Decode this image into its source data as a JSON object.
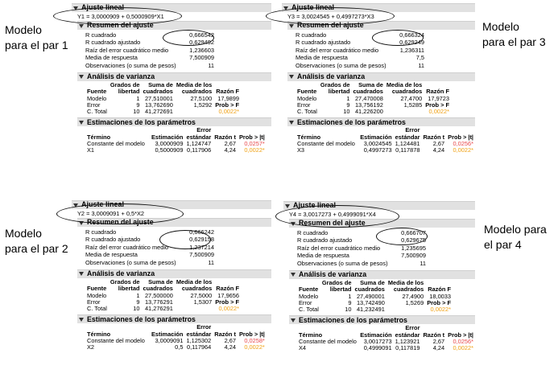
{
  "labels": {
    "p1": "Modelo\npara el par 1",
    "p2": "Modelo\npara el par 2",
    "p3": "Modelo\npara el par 3",
    "p4": "Modelo para\nel par 4"
  },
  "common": {
    "fit_title": "Ajuste lineal",
    "summary_title": "Resumen del ajuste",
    "rsq": "R cuadrado",
    "rsq_adj": "R cuadrado ajustado",
    "rmse": "Raíz del error cuadrático medio",
    "mean": "Media de respuesta",
    "obs": "Observaciones (o suma de pesos)",
    "anova_title": "Análisis de varianza",
    "h_source": "Fuente",
    "h_df1": "Grados de",
    "h_df2": "libertad",
    "h_ss1": "Suma de",
    "h_ss2": "cuadrados",
    "h_ms1": "Media de los",
    "h_ms2": "cuadrados",
    "h_f": "Razón F",
    "h_probf": "Prob > F",
    "src_model": "Modelo",
    "src_error": "Error",
    "src_total": "C. Total",
    "params_title": "Estimaciones de los parámetros",
    "h_term": "Término",
    "h_est": "Estimación",
    "h_err1": "Error",
    "h_err2": "estándar",
    "h_t": "Razón t",
    "h_pt": "Prob > |t|",
    "term_const": "Constante del modelo"
  },
  "panels": {
    "p1": {
      "equation": "Y1 = 3,0000909 + 0,5000909*X1",
      "summary": {
        "rsq": "0,666542",
        "rsq_adj": "0,629492",
        "rmse": "1,236603",
        "mean": "7,500909",
        "obs": "11"
      },
      "anova": {
        "model": {
          "df": "1",
          "ss": "27,510001",
          "ms": "27,5100",
          "f": "17,9899"
        },
        "error": {
          "df": "9",
          "ss": "13,762690",
          "ms": "1,5292"
        },
        "total": {
          "df": "10",
          "ss": "41,272691",
          "pf": "0,0022*"
        }
      },
      "params": [
        {
          "term": "Constante del modelo",
          "est": "3,0000909",
          "se": "1,124747",
          "t": "2,67",
          "p": "0,0257*"
        },
        {
          "term": "X1",
          "est": "0,5000909",
          "se": "0,117906",
          "t": "4,24",
          "p": "0,0022*"
        }
      ]
    },
    "p3": {
      "equation": "Y3 = 3,0024545 + 0,4997273*X3",
      "summary": {
        "rsq": "0,666324",
        "rsq_adj": "0,629249",
        "rmse": "1,236311",
        "mean": "7,5",
        "obs": "11"
      },
      "anova": {
        "model": {
          "df": "1",
          "ss": "27,470008",
          "ms": "27,4700",
          "f": "17,9723"
        },
        "error": {
          "df": "9",
          "ss": "13,756192",
          "ms": "1,5285"
        },
        "total": {
          "df": "10",
          "ss": "41,226200",
          "pf": "0,0022*"
        }
      },
      "params": [
        {
          "term": "Constante del modelo",
          "est": "3,0024545",
          "se": "1,124481",
          "t": "2,67",
          "p": "0,0256*"
        },
        {
          "term": "X3",
          "est": "0,4997273",
          "se": "0,117878",
          "t": "4,24",
          "p": "0,0022*"
        }
      ]
    },
    "p2": {
      "equation": "Y2 = 3,0009091 + 0,5*X2",
      "summary": {
        "rsq": "0,666242",
        "rsq_adj": "0,629158",
        "rmse": "1,237214",
        "mean": "7,500909",
        "obs": "11"
      },
      "anova": {
        "model": {
          "df": "1",
          "ss": "27,500000",
          "ms": "27,5000",
          "f": "17,9656"
        },
        "error": {
          "df": "9",
          "ss": "13,776291",
          "ms": "1,5307"
        },
        "total": {
          "df": "10",
          "ss": "41,276291",
          "pf": "0,0022*"
        }
      },
      "params": [
        {
          "term": "Constante del modelo",
          "est": "3,0009091",
          "se": "1,125302",
          "t": "2,67",
          "p": "0,0258*"
        },
        {
          "term": "X2",
          "est": "0,5",
          "se": "0,117964",
          "t": "4,24",
          "p": "0,0022*"
        }
      ]
    },
    "p4": {
      "equation": "Y4 = 3,0017273 + 0,4999091*X4",
      "summary": {
        "rsq": "0,666707",
        "rsq_adj": "0,629675",
        "rmse": "1,235695",
        "mean": "7,500909",
        "obs": "11"
      },
      "anova": {
        "model": {
          "df": "1",
          "ss": "27,490001",
          "ms": "27,4900",
          "f": "18,0033"
        },
        "error": {
          "df": "9",
          "ss": "13,742490",
          "ms": "1,5269"
        },
        "total": {
          "df": "10",
          "ss": "41,232491",
          "pf": "0,0022*"
        }
      },
      "params": [
        {
          "term": "Constante del modelo",
          "est": "3,0017273",
          "se": "1,123921",
          "t": "2,67",
          "p": "0,0256*"
        },
        {
          "term": "X4",
          "est": "0,4999091",
          "se": "0,117819",
          "t": "4,24",
          "p": "0,0022*"
        }
      ]
    }
  }
}
